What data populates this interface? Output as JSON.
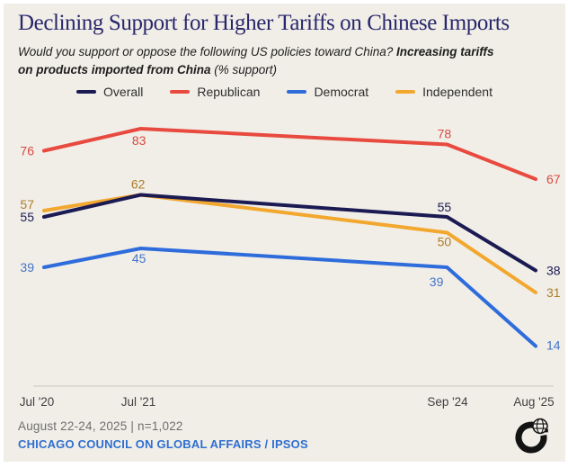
{
  "header": {
    "title": "Declining Support for Higher Tariffs on Chinese Imports",
    "subtitle_regular": "Would you support or oppose the following US policies toward China? ",
    "subtitle_bold_line1": "Increasing tariffs",
    "subtitle_bold_line2": "on products imported from China",
    "subtitle_suffix": " (% support)"
  },
  "chart_data": {
    "type": "line",
    "title": "Declining Support for Higher Tariffs on Chinese Imports",
    "unit": "% support",
    "x": [
      "Jul '20",
      "Jul '21",
      "Sep '24",
      "Aug '25"
    ],
    "x_rel_months": [
      0,
      12,
      50,
      61
    ],
    "ylim": [
      0,
      100
    ],
    "grid": false,
    "legend_position": "top",
    "series": [
      {
        "name": "Overall",
        "color": "#1b1a52",
        "label_color": "#1b1a52",
        "values": [
          55,
          62,
          55,
          38
        ]
      },
      {
        "name": "Republican",
        "color": "#e84a3f",
        "label_color": "#d6493f",
        "values": [
          76,
          83,
          78,
          67
        ]
      },
      {
        "name": "Democrat",
        "color": "#2f6cdb",
        "label_color": "#4273c9",
        "values": [
          39,
          45,
          39,
          14
        ]
      },
      {
        "name": "Independent",
        "color": "#f2a72e",
        "label_color": "#ae7c27",
        "values": [
          57,
          62,
          50,
          31
        ]
      }
    ]
  },
  "footer": {
    "note": "August 22-24, 2025 | n=1,022",
    "source": "CHICAGO COUNCIL ON GLOBAL AFFAIRS / IPSOS"
  }
}
